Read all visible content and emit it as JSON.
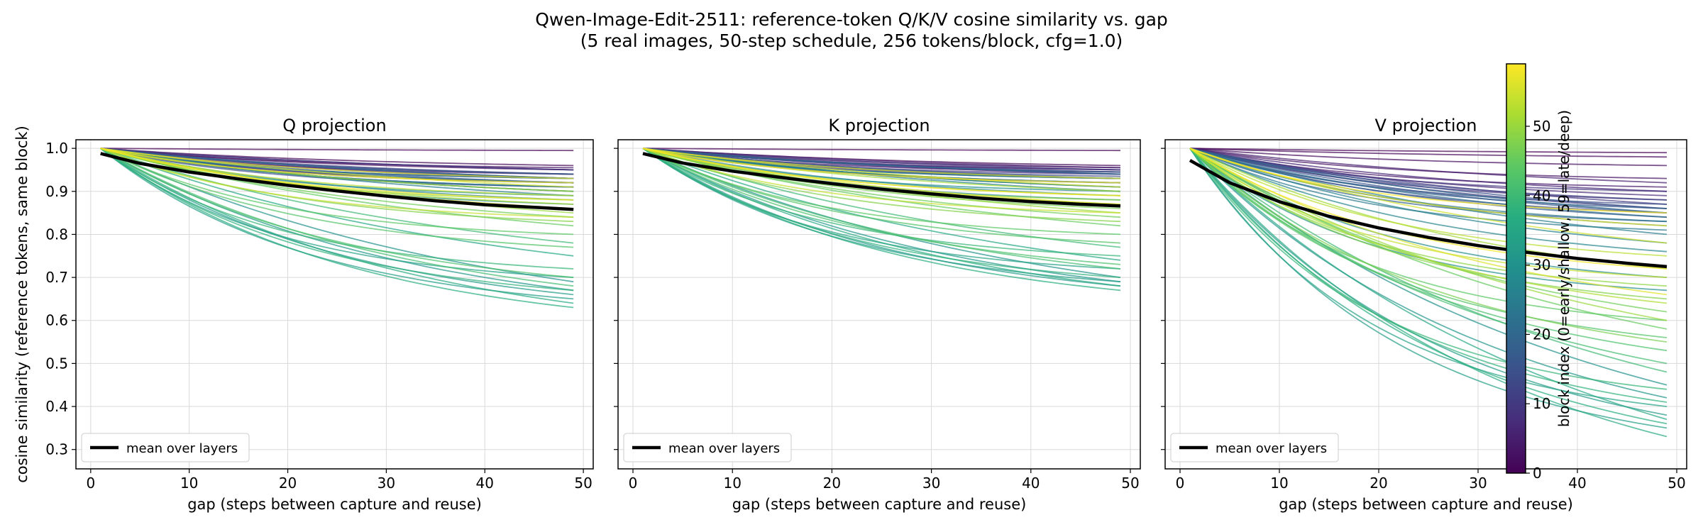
{
  "figure": {
    "title_line1": "Qwen-Image-Edit-2511: reference-token Q/K/V cosine similarity vs. gap",
    "title_line2": "(5 real images, 50-step schedule, 256 tokens/block, cfg=1.0)"
  },
  "colors": {
    "mean_line": "#000000",
    "colormap": "viridis",
    "grid": "#d9d9d9"
  },
  "chart_data": [
    {
      "type": "line",
      "title": "Q projection",
      "xlabel": "gap (steps between capture and reuse)",
      "ylabel": "cosine similarity (reference tokens, same block)",
      "xlim": [
        -1.5,
        51
      ],
      "ylim": [
        0.255,
        1.02
      ],
      "xticks": [
        0,
        10,
        20,
        30,
        40,
        50
      ],
      "yticks": [
        0.3,
        0.4,
        0.5,
        0.6,
        0.7,
        0.8,
        0.9,
        1.0
      ],
      "grid": true,
      "legend": {
        "placement": "lower-left",
        "entries": [
          "mean over layers"
        ]
      },
      "x": [
        1,
        5,
        10,
        15,
        20,
        25,
        30,
        35,
        40,
        45,
        49
      ],
      "mean_series": {
        "name": "mean over layers",
        "values": [
          0.988,
          0.965,
          0.945,
          0.929,
          0.914,
          0.901,
          0.889,
          0.878,
          0.869,
          0.863,
          0.858
        ]
      },
      "layer_series_note": "60 thin lines colored by block index",
      "layer_final_values": [
        0.995,
        0.96,
        0.95,
        0.955,
        0.94,
        0.95,
        0.93,
        0.94,
        0.92,
        0.93,
        0.95,
        0.94,
        0.93,
        0.92,
        0.91,
        0.93,
        0.92,
        0.94,
        0.91,
        0.92,
        0.93,
        0.9,
        0.92,
        0.91,
        0.93,
        0.89,
        0.9,
        0.88,
        0.87,
        0.89,
        0.69,
        0.67,
        0.66,
        0.65,
        0.7,
        0.75,
        0.64,
        0.63,
        0.67,
        0.72,
        0.78,
        0.68,
        0.7,
        0.77,
        0.8,
        0.82,
        0.84,
        0.86,
        0.83,
        0.88,
        0.85,
        0.9,
        0.87,
        0.89,
        0.84,
        0.91,
        0.86,
        0.93,
        0.88,
        0.92
      ]
    },
    {
      "type": "line",
      "title": "K projection",
      "xlabel": "gap (steps between capture and reuse)",
      "ylabel": "",
      "xlim": [
        -1.5,
        51
      ],
      "ylim": [
        0.255,
        1.02
      ],
      "xticks": [
        0,
        10,
        20,
        30,
        40,
        50
      ],
      "yticks": [
        0.3,
        0.4,
        0.5,
        0.6,
        0.7,
        0.8,
        0.9,
        1.0
      ],
      "grid": true,
      "legend": {
        "placement": "lower-left",
        "entries": [
          "mean over layers"
        ]
      },
      "x": [
        1,
        5,
        10,
        15,
        20,
        25,
        30,
        35,
        40,
        45,
        49
      ],
      "mean_series": {
        "name": "mean over layers",
        "values": [
          0.988,
          0.966,
          0.947,
          0.932,
          0.918,
          0.905,
          0.894,
          0.884,
          0.876,
          0.87,
          0.866
        ]
      },
      "layer_series_note": "60 thin lines colored by block index",
      "layer_final_values": [
        0.995,
        0.96,
        0.955,
        0.95,
        0.945,
        0.955,
        0.94,
        0.95,
        0.93,
        0.94,
        0.95,
        0.945,
        0.93,
        0.935,
        0.92,
        0.94,
        0.93,
        0.945,
        0.92,
        0.93,
        0.94,
        0.91,
        0.93,
        0.92,
        0.93,
        0.9,
        0.91,
        0.89,
        0.88,
        0.9,
        0.7,
        0.69,
        0.68,
        0.69,
        0.72,
        0.74,
        0.68,
        0.67,
        0.7,
        0.75,
        0.77,
        0.72,
        0.73,
        0.78,
        0.8,
        0.82,
        0.84,
        0.86,
        0.83,
        0.88,
        0.85,
        0.9,
        0.87,
        0.89,
        0.85,
        0.91,
        0.87,
        0.93,
        0.89,
        0.92
      ]
    },
    {
      "type": "line",
      "title": "V projection",
      "xlabel": "gap (steps between capture and reuse)",
      "ylabel": "",
      "xlim": [
        -1.5,
        51
      ],
      "ylim": [
        0.255,
        1.02
      ],
      "xticks": [
        0,
        10,
        20,
        30,
        40,
        50
      ],
      "yticks": [
        0.3,
        0.4,
        0.5,
        0.6,
        0.7,
        0.8,
        0.9,
        1.0
      ],
      "grid": true,
      "legend": {
        "placement": "lower-left",
        "entries": [
          "mean over layers"
        ]
      },
      "x": [
        1,
        5,
        10,
        15,
        20,
        25,
        30,
        35,
        40,
        45,
        49
      ],
      "mean_series": {
        "name": "mean over layers",
        "values": [
          0.972,
          0.92,
          0.876,
          0.842,
          0.815,
          0.793,
          0.774,
          0.758,
          0.744,
          0.733,
          0.725
        ]
      },
      "layer_series_note": "60 thin lines colored by block index",
      "layer_final_values": [
        0.99,
        0.98,
        0.96,
        0.93,
        0.91,
        0.92,
        0.9,
        0.89,
        0.88,
        0.9,
        0.87,
        0.86,
        0.88,
        0.85,
        0.87,
        0.86,
        0.85,
        0.84,
        0.86,
        0.83,
        0.85,
        0.84,
        0.82,
        0.83,
        0.81,
        0.8,
        0.78,
        0.76,
        0.7,
        0.67,
        0.45,
        0.42,
        0.38,
        0.35,
        0.4,
        0.37,
        0.33,
        0.36,
        0.41,
        0.44,
        0.48,
        0.5,
        0.53,
        0.56,
        0.6,
        0.58,
        0.62,
        0.55,
        0.65,
        0.68,
        0.6,
        0.72,
        0.64,
        0.75,
        0.7,
        0.78,
        0.66,
        0.82,
        0.72,
        0.85
      ]
    }
  ],
  "colorbar": {
    "label": "block index (0=early/shallow, 59=late/deep)",
    "range": [
      0,
      59
    ],
    "ticks": [
      0,
      10,
      20,
      30,
      40,
      50
    ]
  }
}
